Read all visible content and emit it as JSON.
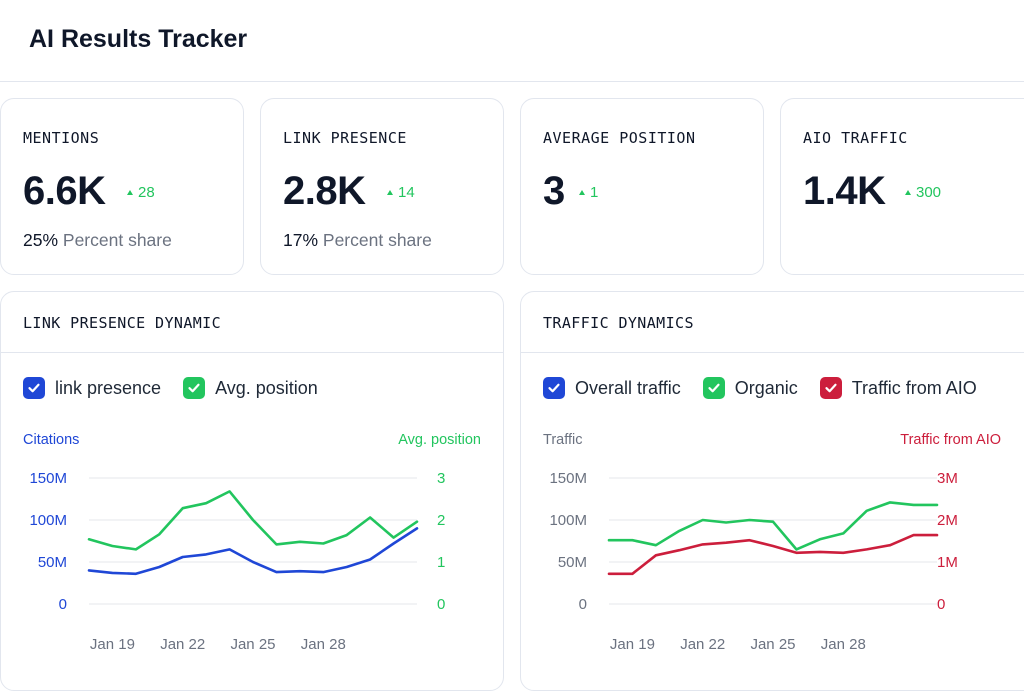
{
  "header": {
    "title": "AI Results Tracker"
  },
  "kpis": [
    {
      "label": "MENTIONS",
      "value": "6.6K",
      "delta": "28",
      "share_value": "25%",
      "share_text": "Percent share"
    },
    {
      "label": "LINK PRESENCE",
      "value": "2.8K",
      "delta": "14",
      "share_value": "17%",
      "share_text": "Percent share"
    },
    {
      "label": "AVERAGE POSITION",
      "value": "3",
      "delta": "1",
      "share_value": "",
      "share_text": ""
    },
    {
      "label": "AIO TRAFFIC",
      "value": "1.4K",
      "delta": "300",
      "share_value": "",
      "share_text": ""
    }
  ],
  "colors": {
    "blue": "#1f47d6",
    "green": "#22c55e",
    "red": "#cc1e3c",
    "gray": "#6b7280",
    "grid": "#e5e7eb",
    "delta": "#22c55e"
  },
  "panels": {
    "link": {
      "title": "LINK PRESENCE DYNAMIC",
      "legend": [
        {
          "label": "link presence",
          "color": "#1f47d6",
          "checked": true
        },
        {
          "label": "Avg. position",
          "color": "#22c55e",
          "checked": true
        }
      ]
    },
    "traffic": {
      "title": "TRAFFIC DYNAMICS",
      "legend": [
        {
          "label": "Overall traffic",
          "color": "#1f47d6",
          "checked": true
        },
        {
          "label": "Organic",
          "color": "#22c55e",
          "checked": true
        },
        {
          "label": "Traffic from AIO",
          "color": "#cc1e3c",
          "checked": true
        }
      ]
    }
  },
  "chart_data": [
    {
      "type": "line",
      "left_axis_title": "Citations",
      "right_axis_title": "Avg. position",
      "left_ticks": [
        "0",
        "50M",
        "100M",
        "150M"
      ],
      "right_ticks": [
        "0",
        "1",
        "2",
        "3"
      ],
      "ylim_left": [
        0,
        150
      ],
      "ylim_right": [
        0,
        3
      ],
      "x_ticks": [
        "Jan 19",
        "Jan 22",
        "Jan 25",
        "Jan 28"
      ],
      "x_tick_index": [
        1,
        4,
        7,
        10
      ],
      "series": [
        {
          "name": "link presence",
          "axis": "left",
          "color": "#1f47d6",
          "values": [
            40,
            37,
            36,
            44,
            56,
            59,
            65,
            50,
            38,
            39,
            38,
            44,
            53,
            72,
            90
          ]
        },
        {
          "name": "Avg. position",
          "axis": "right",
          "color": "#22c55e",
          "values": [
            1.54,
            1.38,
            1.3,
            1.66,
            2.28,
            2.4,
            2.68,
            2.0,
            1.42,
            1.48,
            1.44,
            1.64,
            2.06,
            1.58,
            1.96
          ]
        }
      ]
    },
    {
      "type": "line",
      "left_axis_title": "Traffic",
      "right_axis_title": "Traffic from AIO",
      "left_ticks": [
        "0",
        "50M",
        "100M",
        "150M"
      ],
      "right_ticks": [
        "0",
        "1M",
        "2M",
        "3M"
      ],
      "ylim_left": [
        0,
        150
      ],
      "ylim_right": [
        0,
        3
      ],
      "x_ticks": [
        "Jan 19",
        "Jan 22",
        "Jan 25",
        "Jan 28"
      ],
      "x_tick_index": [
        1,
        4,
        7,
        10
      ],
      "series": [
        {
          "name": "Organic",
          "axis": "left",
          "color": "#22c55e",
          "values": [
            76,
            76,
            70,
            87,
            100,
            97,
            100,
            98,
            65,
            77,
            84,
            111,
            121,
            118,
            118
          ]
        },
        {
          "name": "Traffic from AIO",
          "axis": "right",
          "color": "#cc1e3c",
          "values": [
            0.72,
            0.72,
            1.16,
            1.28,
            1.42,
            1.46,
            1.52,
            1.38,
            1.22,
            1.24,
            1.22,
            1.3,
            1.4,
            1.64,
            1.64
          ]
        }
      ]
    }
  ]
}
